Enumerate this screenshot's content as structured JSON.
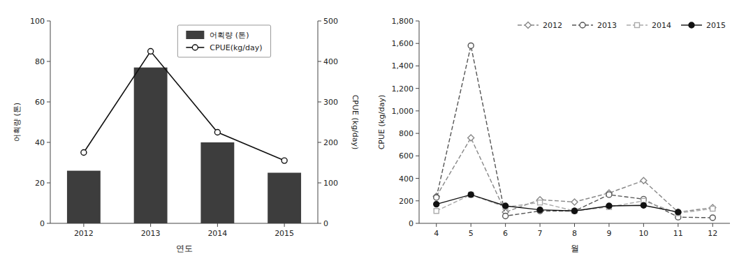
{
  "chart_data": [
    {
      "type": "bar",
      "categories": [
        "2012",
        "2013",
        "2014",
        "2015"
      ],
      "xlabel": "연도",
      "ylabel": "어획량 (톤)",
      "y2label": "CPUE (kg/day)",
      "series": [
        {
          "name": "어획량 (톤)",
          "type": "bar",
          "color": "#3d3d3d",
          "values": [
            26,
            77,
            40,
            25
          ]
        },
        {
          "name": "CPUE(kg/day)",
          "type": "line",
          "color": "#111111",
          "marker": "open-circle",
          "line_style": "solid",
          "axis": "y2",
          "values": [
            175,
            425,
            225,
            155
          ]
        }
      ],
      "ylim": [
        0,
        100
      ],
      "yticks": [
        0,
        20,
        40,
        60,
        80,
        100
      ],
      "y2lim": [
        0,
        500
      ],
      "y2ticks": [
        0,
        100,
        200,
        300,
        400,
        500
      ],
      "legend": "top",
      "grid": false
    },
    {
      "type": "line",
      "x": [
        4,
        5,
        6,
        7,
        8,
        9,
        10,
        11,
        12
      ],
      "xlabel": "월",
      "ylabel": "CPUE (kg/day)",
      "series": [
        {
          "name": "2012",
          "color": "#888888",
          "line_style": "dashed",
          "marker": "open-diamond",
          "values": [
            240,
            760,
            100,
            210,
            190,
            270,
            380,
            100,
            140
          ]
        },
        {
          "name": "2013",
          "color": "#555555",
          "line_style": "dashed",
          "marker": "open-circle",
          "values": [
            230,
            1580,
            65,
            110,
            110,
            255,
            215,
            55,
            50
          ]
        },
        {
          "name": "2014",
          "color": "#aaaaaa",
          "line_style": "dashed",
          "marker": "open-square",
          "values": [
            110,
            255,
            145,
            185,
            110,
            145,
            200,
            90,
            130
          ]
        },
        {
          "name": "2015",
          "color": "#111111",
          "line_style": "solid",
          "marker": "circle",
          "values": [
            170,
            255,
            155,
            120,
            110,
            155,
            160,
            100,
            null
          ]
        }
      ],
      "xlim": [
        3.5,
        12.5
      ],
      "xticks": [
        4,
        5,
        6,
        7,
        8,
        9,
        10,
        11,
        12
      ],
      "ylim": [
        0,
        1800
      ],
      "yticks": [
        0,
        200,
        400,
        600,
        800,
        {
          "value": 1000,
          "label": "1,000"
        },
        {
          "value": 1200,
          "label": "1,200"
        },
        {
          "value": 1400,
          "label": "1,400"
        },
        {
          "value": 1600,
          "label": "1,600"
        },
        {
          "value": 1800,
          "label": "1,800"
        }
      ],
      "legend": "top-right",
      "grid": false
    }
  ]
}
